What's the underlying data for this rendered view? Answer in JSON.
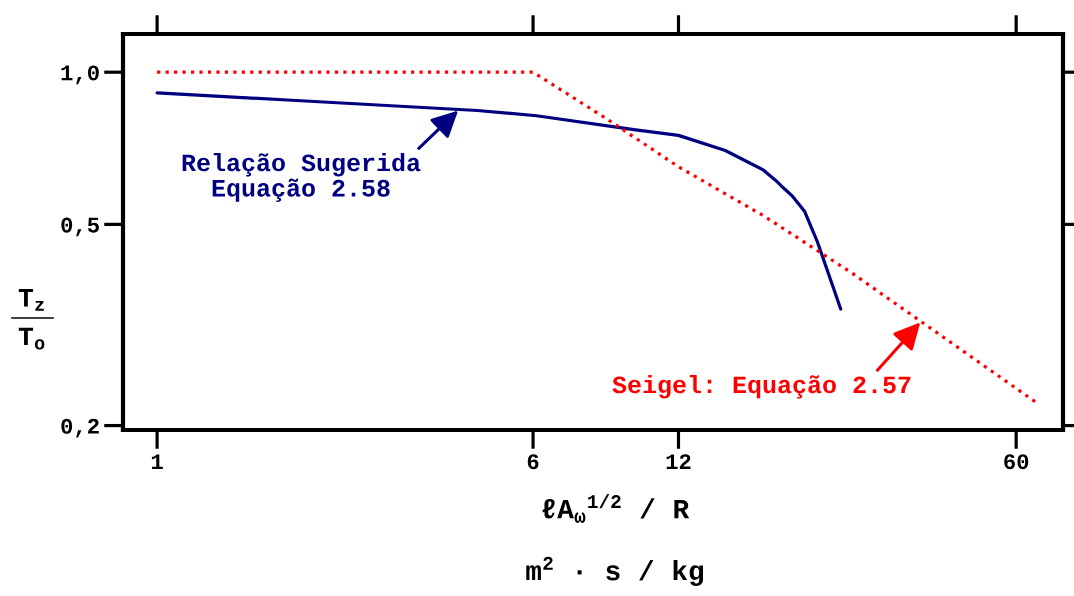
{
  "chart_data": {
    "type": "line",
    "xlabel": "ℓA$_{ω}$$^{1/2}$ / R\nm$^{2}$ · s / kg",
    "ylabel": "T$_{z}$\nT$_{o}$",
    "log": "xy",
    "xlim": [
      0.85,
      75
    ],
    "ylim": [
      0.196,
      1.19
    ],
    "xticks": [
      1,
      6,
      12,
      60
    ],
    "yticks": [
      {
        "value": 0.2,
        "label": "0,2"
      },
      {
        "value": 0.5,
        "label": "0,5"
      },
      {
        "value": 1.0,
        "label": "1,0"
      }
    ],
    "grid": false,
    "marker": "none",
    "series": [
      {
        "color": "#000080",
        "line_style": "solid",
        "x": [
          1.0,
          1.9,
          4.6,
          6.1,
          9.7,
          12,
          15,
          18,
          19.1,
          19.8,
          20.6,
          21.9,
          23.3,
          26
        ],
        "values": [
          0.91,
          0.88,
          0.84,
          0.82,
          0.77,
          0.75,
          0.7,
          0.64,
          0.61,
          0.59,
          0.57,
          0.53,
          0.46,
          0.34
        ]
      },
      {
        "color": "#ff0000",
        "line_style": "dotted",
        "x": [
          1,
          6,
          8.5,
          12,
          18,
          27.5,
          67
        ],
        "values": [
          1.0,
          1.0,
          0.81,
          0.65,
          0.52,
          0.4,
          0.22
        ]
      }
    ],
    "annotations": [
      {
        "text": "Relação Sugerida\nEquação 2.58",
        "x": 4.2,
        "y": 0.84
      },
      {
        "text": "Seigel: Equação 2.57",
        "x": 38,
        "y": 0.32
      }
    ]
  }
}
